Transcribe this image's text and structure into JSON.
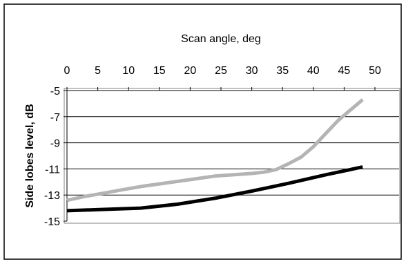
{
  "chart_data": {
    "type": "line",
    "title": "",
    "xlabel": "Scan angle, deg",
    "ylabel": "Side lobes level, dB",
    "x_axis_position": "top",
    "xlim": [
      0,
      50
    ],
    "ylim": [
      -15,
      -5
    ],
    "x_ticks": [
      "0",
      "5",
      "10",
      "15",
      "20",
      "25",
      "30",
      "35",
      "40",
      "45",
      "50"
    ],
    "y_ticks": [
      "-5",
      "-7",
      "-9",
      "-11",
      "-13",
      "-15"
    ],
    "grid": {
      "horizontal": true,
      "vertical": false
    },
    "legend": "none",
    "series": [
      {
        "color": "#b4b4b4",
        "points": [
          [
            0,
            -13.4
          ],
          [
            3,
            -13.1
          ],
          [
            6,
            -12.85
          ],
          [
            9,
            -12.6
          ],
          [
            12,
            -12.35
          ],
          [
            15,
            -12.15
          ],
          [
            18,
            -11.95
          ],
          [
            21,
            -11.75
          ],
          [
            24,
            -11.55
          ],
          [
            27,
            -11.45
          ],
          [
            30,
            -11.35
          ],
          [
            32,
            -11.25
          ],
          [
            34,
            -11.05
          ],
          [
            36,
            -10.6
          ],
          [
            38,
            -10.1
          ],
          [
            40,
            -9.3
          ],
          [
            42,
            -8.3
          ],
          [
            44,
            -7.3
          ],
          [
            46,
            -6.5
          ],
          [
            48,
            -5.7
          ]
        ]
      },
      {
        "color": "#000000",
        "points": [
          [
            0,
            -14.2
          ],
          [
            6,
            -14.1
          ],
          [
            12,
            -14.0
          ],
          [
            18,
            -13.7
          ],
          [
            24,
            -13.25
          ],
          [
            30,
            -12.7
          ],
          [
            36,
            -12.1
          ],
          [
            42,
            -11.45
          ],
          [
            48,
            -10.85
          ]
        ]
      }
    ]
  }
}
